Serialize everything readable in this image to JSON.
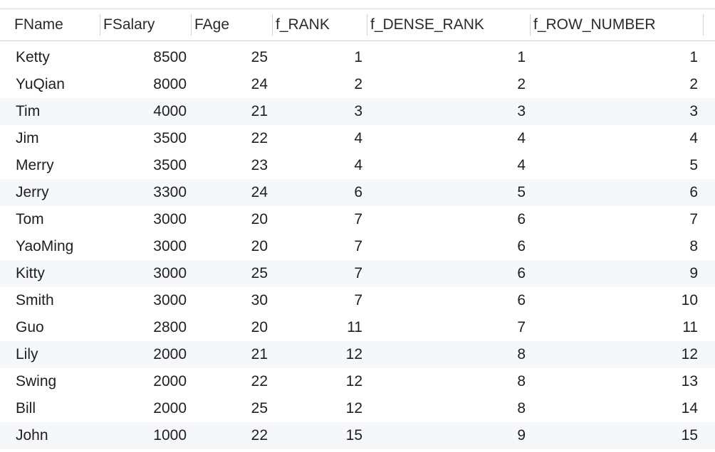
{
  "table": {
    "columns": [
      "FName",
      "FSalary",
      "FAge",
      "f_RANK",
      "f_DENSE_RANK",
      "f_ROW_NUMBER"
    ],
    "rows": [
      [
        "Ketty",
        "8500",
        "25",
        "1",
        "1",
        "1"
      ],
      [
        "YuQian",
        "8000",
        "24",
        "2",
        "2",
        "2"
      ],
      [
        "Tim",
        "4000",
        "21",
        "3",
        "3",
        "3"
      ],
      [
        "Jim",
        "3500",
        "22",
        "4",
        "4",
        "4"
      ],
      [
        "Merry",
        "3500",
        "23",
        "4",
        "4",
        "5"
      ],
      [
        "Jerry",
        "3300",
        "24",
        "6",
        "5",
        "6"
      ],
      [
        "Tom",
        "3000",
        "20",
        "7",
        "6",
        "7"
      ],
      [
        "YaoMing",
        "3000",
        "20",
        "7",
        "6",
        "8"
      ],
      [
        "Kitty",
        "3000",
        "25",
        "7",
        "6",
        "9"
      ],
      [
        "Smith",
        "3000",
        "30",
        "7",
        "6",
        "10"
      ],
      [
        "Guo",
        "2800",
        "20",
        "11",
        "7",
        "11"
      ],
      [
        "Lily",
        "2000",
        "21",
        "12",
        "8",
        "12"
      ],
      [
        "Swing",
        "2000",
        "22",
        "12",
        "8",
        "13"
      ],
      [
        "Bill",
        "2000",
        "25",
        "12",
        "8",
        "14"
      ],
      [
        "John",
        "1000",
        "22",
        "15",
        "9",
        "15"
      ]
    ]
  },
  "colors": {
    "header_text": "#2a2a2a",
    "row_text": "#1f1f1f",
    "alt_row_bg": "#f5f7fa",
    "separator": "#d0d0d0"
  }
}
